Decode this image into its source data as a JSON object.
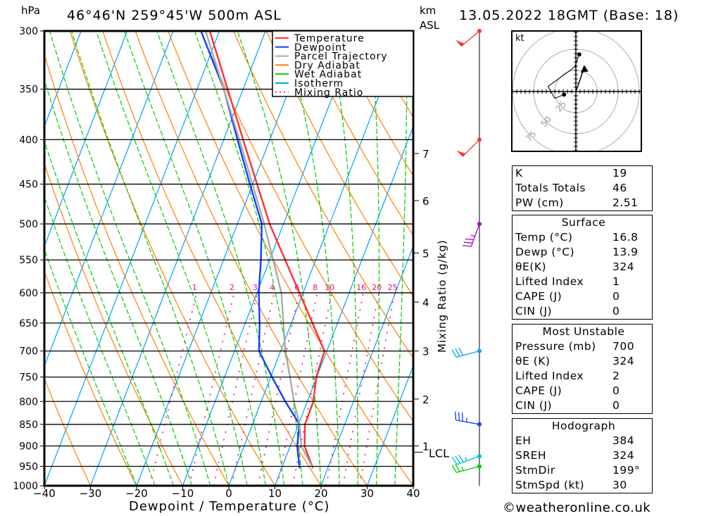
{
  "header": {
    "pressure_unit": "hPa",
    "location": "46°46'N 259°45'W 500m ASL",
    "km_label": "km",
    "asl_label": "ASL",
    "datetime": "13.05.2022 18GMT (Base: 18)"
  },
  "chart_data": {
    "type": "line",
    "title": "46°46'N 259°45'W 500m ASL",
    "xlabel": "Dewpoint / Temperature (°C)",
    "ylabel": "hPa",
    "ylabel_right": "Mixing Ratio (g/kg)",
    "xlim": [
      -40,
      40
    ],
    "ylim": [
      1000,
      300
    ],
    "x_ticks": [
      "-40",
      "-30",
      "-20",
      "-10",
      "0",
      "10",
      "20",
      "30",
      "40"
    ],
    "y_ticks": [
      "300",
      "350",
      "400",
      "450",
      "500",
      "550",
      "600",
      "650",
      "700",
      "750",
      "800",
      "850",
      "900",
      "950",
      "1000"
    ],
    "km_ticks": [
      {
        "km": "7",
        "p": 415
      },
      {
        "km": "6",
        "p": 470
      },
      {
        "km": "5",
        "p": 540
      },
      {
        "km": "4",
        "p": 615
      },
      {
        "km": "3",
        "p": 700
      },
      {
        "km": "2",
        "p": 795
      },
      {
        "km": "1",
        "p": 900
      }
    ],
    "lcl": {
      "label": "LCL",
      "p": 915
    },
    "mixing_ratio_labels": [
      "1",
      "2",
      "3",
      "4",
      "6",
      "8",
      "10",
      "16",
      "20",
      "25"
    ],
    "legend": {
      "position": "top-right",
      "entries": [
        {
          "label": "Temperature",
          "color": "#ff3030",
          "style": "solid"
        },
        {
          "label": "Dewpoint",
          "color": "#1040ff",
          "style": "solid"
        },
        {
          "label": "Parcel Trajectory",
          "color": "#aaaaaa",
          "style": "solid"
        },
        {
          "label": "Dry Adiabat",
          "color": "#ff8000",
          "style": "solid"
        },
        {
          "label": "Wet Adiabat",
          "color": "#00cc00",
          "style": "dashed"
        },
        {
          "label": "Isotherm",
          "color": "#00a0ff",
          "style": "solid"
        },
        {
          "label": "Mixing Ratio",
          "color": "#ff0080",
          "style": "dotted"
        }
      ]
    },
    "series": [
      {
        "name": "Temperature",
        "color": "#ff3030",
        "p": [
          955,
          900,
          850,
          800,
          750,
          700,
          600,
          500,
          400,
          300
        ],
        "t": [
          16.8,
          13.1,
          11.4,
          11.3,
          9.9,
          9.5,
          -0.8,
          -13,
          -25.8,
          -42.1
        ]
      },
      {
        "name": "Dewpoint",
        "color": "#1040ff",
        "p": [
          955,
          900,
          850,
          800,
          750,
          700,
          650,
          600,
          550,
          500,
          450,
          400,
          350,
          300
        ],
        "t": [
          13.9,
          11.5,
          10.2,
          5.2,
          0.3,
          -4.7,
          -6.9,
          -9.6,
          -11.9,
          -14.7,
          -20.6,
          -27,
          -34.2,
          -44
        ]
      },
      {
        "name": "Parcel Trajectory",
        "color": "#aaaaaa",
        "p": [
          955,
          900,
          850,
          800,
          750,
          700,
          600,
          500,
          400,
          300
        ],
        "t": [
          16.8,
          12.4,
          10.2,
          7.1,
          4.2,
          1.0,
          -4.7,
          -14.2,
          -26.6,
          -43
        ]
      }
    ]
  },
  "winds": [
    {
      "p": 300,
      "color": "#ff3030",
      "dir": 230,
      "kt": 50
    },
    {
      "p": 400,
      "color": "#ff3030",
      "dir": 225,
      "kt": 50
    },
    {
      "p": 500,
      "color": "#aa00cc",
      "dir": 200,
      "kt": 35
    },
    {
      "p": 700,
      "color": "#00a0ff",
      "dir": 255,
      "kt": 30
    },
    {
      "p": 850,
      "color": "#1040ff",
      "dir": 280,
      "kt": 35
    },
    {
      "p": 925,
      "color": "#00bbcc",
      "dir": 250,
      "kt": 35
    },
    {
      "p": 950,
      "color": "#00cc00",
      "dir": 255,
      "kt": 25
    }
  ],
  "hodograph": {
    "unit": "kt",
    "rings": [
      "25",
      "50",
      "75"
    ],
    "points": [
      [
        -14,
        -3.6
      ],
      [
        -25,
        -8
      ],
      [
        -33,
        6
      ],
      [
        -1.4,
        29
      ],
      [
        4,
        44
      ]
    ],
    "storm_motion": [
      9.8,
      28
    ]
  },
  "indices": [
    {
      "label": "K",
      "value": "19"
    },
    {
      "label": "Totals Totals",
      "value": "46"
    },
    {
      "label": "PW (cm)",
      "value": "2.51"
    }
  ],
  "surface": {
    "title": "Surface",
    "rows": [
      {
        "label": "Temp (°C)",
        "value": "16.8"
      },
      {
        "label": "Dewp (°C)",
        "value": "13.9"
      },
      {
        "label": "θE(K)",
        "value": "324"
      },
      {
        "label": "Lifted Index",
        "value": "1"
      },
      {
        "label": "CAPE (J)",
        "value": "0"
      },
      {
        "label": "CIN (J)",
        "value": "0"
      }
    ]
  },
  "most_unstable": {
    "title": "Most Unstable",
    "rows": [
      {
        "label": "Pressure (mb)",
        "value": "700"
      },
      {
        "label": "θE (K)",
        "value": "324"
      },
      {
        "label": "Lifted Index",
        "value": "2"
      },
      {
        "label": "CAPE (J)",
        "value": "0"
      },
      {
        "label": "CIN (J)",
        "value": "0"
      }
    ]
  },
  "hodograph_table": {
    "title": "Hodograph",
    "rows": [
      {
        "label": "EH",
        "value": "384"
      },
      {
        "label": "SREH",
        "value": "324"
      },
      {
        "label": "StmDir",
        "value": "199°"
      },
      {
        "label": "StmSpd (kt)",
        "value": "30"
      }
    ]
  },
  "footer": {
    "copyright": "©weatheronline.co.uk"
  }
}
